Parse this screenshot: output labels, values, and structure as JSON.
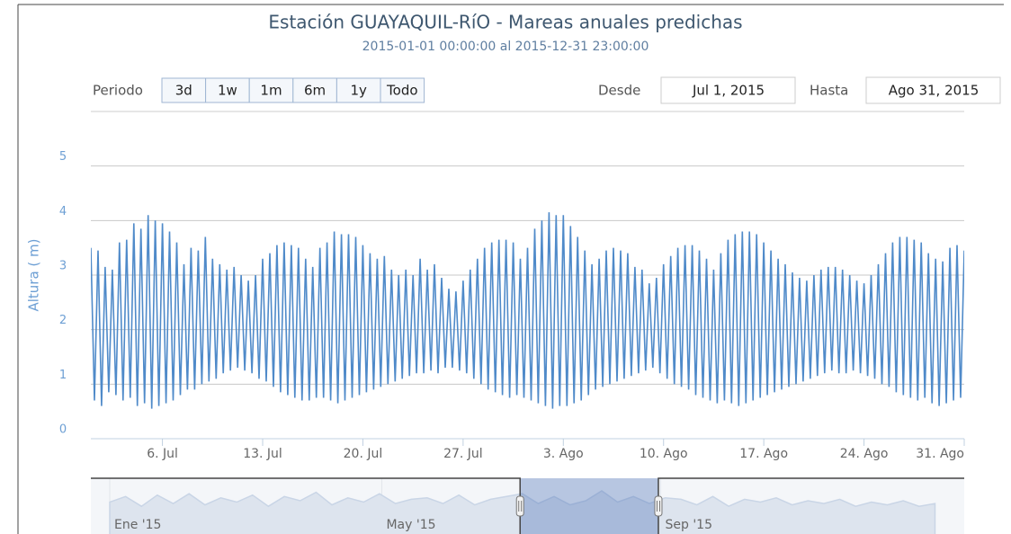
{
  "chart_data": {
    "type": "line",
    "title": "Estación GUAYAQUIL-RíO - Mareas anuales predichas",
    "subtitle": "2015-01-01 00:00:00 al 2015-12-31 23:00:00",
    "y_label": "Altura ( m)",
    "range_selector": {
      "label": "Periodo",
      "buttons": [
        "3d",
        "1w",
        "1m",
        "6m",
        "1y",
        "Todo"
      ],
      "from_label": "Desde",
      "from": "Jul 1, 2015",
      "to_label": "Hasta",
      "to": "Ago 31, 2015"
    },
    "xlim": [
      0,
      61
    ],
    "ylim": [
      0,
      6
    ],
    "yticks": [
      0,
      1,
      2,
      3,
      4,
      5
    ],
    "xticks": [
      {
        "value": 5,
        "label": "6. Jul"
      },
      {
        "value": 12,
        "label": "13. Jul"
      },
      {
        "value": 19,
        "label": "20. Jul"
      },
      {
        "value": 26,
        "label": "27. Jul"
      },
      {
        "value": 33,
        "label": "3. Ago"
      },
      {
        "value": 40,
        "label": "10. Ago"
      },
      {
        "value": 47,
        "label": "17. Ago"
      },
      {
        "value": 54,
        "label": "24. Ago"
      },
      {
        "value": 61,
        "label": "31. Ago"
      }
    ],
    "grid": true,
    "x": [
      0,
      0.25,
      0.5,
      0.75,
      1,
      1.25,
      1.5,
      1.75,
      2,
      2.25,
      2.5,
      2.75,
      3,
      3.25,
      3.5,
      3.75,
      4,
      4.25,
      4.5,
      4.75,
      5,
      5.25,
      5.5,
      5.75,
      6,
      6.25,
      6.5,
      6.75,
      7,
      7.25,
      7.5,
      7.75,
      8,
      8.25,
      8.5,
      8.75,
      9,
      9.25,
      9.5,
      9.75,
      10,
      10.25,
      10.5,
      10.75,
      11,
      11.25,
      11.5,
      11.75,
      12,
      12.25,
      12.5,
      12.75,
      13,
      13.25,
      13.5,
      13.75,
      14,
      14.25,
      14.5,
      14.75,
      15,
      15.25,
      15.5,
      15.75,
      16,
      16.25,
      16.5,
      16.75,
      17,
      17.25,
      17.5,
      17.75,
      18,
      18.25,
      18.5,
      18.75,
      19,
      19.25,
      19.5,
      19.75,
      20,
      20.25,
      20.5,
      20.75,
      21,
      21.25,
      21.5,
      21.75,
      22,
      22.25,
      22.5,
      22.75,
      23,
      23.25,
      23.5,
      23.75,
      24,
      24.25,
      24.5,
      24.75,
      25,
      25.25,
      25.5,
      25.75,
      26,
      26.25,
      26.5,
      26.75,
      27,
      27.25,
      27.5,
      27.75,
      28,
      28.25,
      28.5,
      28.75,
      29,
      29.25,
      29.5,
      29.75,
      30,
      30.25,
      30.5,
      30.75,
      31,
      31.25,
      31.5,
      31.75,
      32,
      32.25,
      32.5,
      32.75,
      33,
      33.25,
      33.5,
      33.75,
      34,
      34.25,
      34.5,
      34.75,
      35,
      35.25,
      35.5,
      35.75,
      36,
      36.25,
      36.5,
      36.75,
      37,
      37.25,
      37.5,
      37.75,
      38,
      38.25,
      38.5,
      38.75,
      39,
      39.25,
      39.5,
      39.75,
      40,
      40.25,
      40.5,
      40.75,
      41,
      41.25,
      41.5,
      41.75,
      42,
      42.25,
      42.5,
      42.75,
      43,
      43.25,
      43.5,
      43.75,
      44,
      44.25,
      44.5,
      44.75,
      45,
      45.25,
      45.5,
      45.75,
      46,
      46.25,
      46.5,
      46.75,
      47,
      47.25,
      47.5,
      47.75,
      48,
      48.25,
      48.5,
      48.75,
      49,
      49.25,
      49.5,
      49.75,
      50,
      50.25,
      50.5,
      50.75,
      51,
      51.25,
      51.5,
      51.75,
      52,
      52.25,
      52.5,
      52.75,
      53,
      53.25,
      53.5,
      53.75,
      54,
      54.25,
      54.5,
      54.75,
      55,
      55.25,
      55.5,
      55.75,
      56,
      56.25,
      56.5,
      56.75,
      57,
      57.25,
      57.5,
      57.75,
      58,
      58.25,
      58.5,
      58.75,
      59,
      59.25,
      59.5,
      59.75,
      60,
      60.25,
      60.5,
      60.75,
      61
    ],
    "series": [
      {
        "name": "Altura",
        "color": "#4f8ac9",
        "values": [
          3.5,
          0.7,
          3.45,
          0.6,
          3.15,
          0.85,
          3.1,
          0.8,
          3.6,
          0.7,
          3.65,
          0.75,
          3.95,
          0.6,
          3.85,
          0.65,
          4.1,
          0.55,
          4.0,
          0.6,
          3.95,
          0.65,
          3.8,
          0.7,
          3.6,
          0.8,
          3.2,
          0.9,
          3.5,
          0.9,
          3.45,
          1.0,
          3.7,
          1.05,
          3.3,
          1.1,
          3.2,
          1.2,
          3.1,
          1.25,
          3.15,
          1.3,
          3.0,
          1.25,
          2.9,
          1.2,
          3.0,
          1.1,
          3.3,
          1.05,
          3.4,
          0.95,
          3.55,
          0.85,
          3.6,
          0.8,
          3.55,
          0.75,
          3.5,
          0.7,
          3.3,
          0.7,
          3.15,
          0.75,
          3.5,
          0.75,
          3.6,
          0.7,
          3.8,
          0.65,
          3.75,
          0.7,
          3.75,
          0.75,
          3.7,
          0.8,
          3.55,
          0.85,
          3.4,
          0.9,
          3.3,
          0.95,
          3.35,
          1.0,
          3.1,
          1.05,
          3.0,
          1.1,
          3.1,
          1.15,
          3.0,
          1.2,
          3.3,
          1.2,
          3.1,
          1.25,
          3.2,
          1.2,
          2.95,
          1.3,
          2.75,
          1.3,
          2.7,
          1.25,
          2.9,
          1.2,
          3.1,
          1.1,
          3.3,
          1.0,
          3.5,
          0.9,
          3.6,
          0.85,
          3.65,
          0.8,
          3.65,
          0.75,
          3.6,
          0.8,
          3.3,
          0.75,
          3.5,
          0.7,
          3.85,
          0.65,
          4.0,
          0.6,
          4.15,
          0.55,
          4.1,
          0.6,
          4.1,
          0.6,
          3.9,
          0.65,
          3.7,
          0.7,
          3.45,
          0.8,
          3.2,
          0.9,
          3.3,
          0.95,
          3.45,
          1.0,
          3.5,
          1.05,
          3.45,
          1.1,
          3.4,
          1.15,
          3.15,
          1.2,
          3.1,
          1.25,
          2.85,
          1.3,
          2.95,
          1.2,
          3.2,
          1.1,
          3.35,
          1.0,
          3.5,
          0.95,
          3.55,
          0.9,
          3.55,
          0.8,
          3.45,
          0.75,
          3.3,
          0.7,
          3.1,
          0.65,
          3.4,
          0.7,
          3.65,
          0.65,
          3.75,
          0.6,
          3.8,
          0.65,
          3.8,
          0.7,
          3.75,
          0.75,
          3.6,
          0.8,
          3.45,
          0.85,
          3.3,
          0.9,
          3.2,
          0.95,
          3.05,
          1.0,
          2.95,
          1.05,
          2.9,
          1.1,
          3.0,
          1.15,
          3.1,
          1.2,
          3.15,
          1.25,
          3.15,
          1.2,
          3.1,
          1.2,
          3.0,
          1.25,
          2.9,
          1.2,
          2.85,
          1.15,
          3.0,
          1.1,
          3.2,
          1.0,
          3.4,
          0.95,
          3.6,
          0.85,
          3.7,
          0.8,
          3.7,
          0.75,
          3.65,
          0.7,
          3.6,
          0.75,
          3.4,
          0.65,
          3.3,
          0.6,
          3.25,
          0.65,
          3.5,
          0.7,
          3.55,
          0.75,
          3.45
        ]
      }
    ],
    "navigator": {
      "xlim": [
        0,
        365
      ],
      "ylim": [
        0,
        5
      ],
      "xticks": [
        {
          "value": 0,
          "label": "Ene '15"
        },
        {
          "value": 120,
          "label": "May '15"
        },
        {
          "value": 243,
          "label": "Sep '15"
        }
      ],
      "selection": [
        181,
        242
      ],
      "x": [
        0,
        7,
        14,
        21,
        28,
        35,
        42,
        49,
        56,
        63,
        70,
        77,
        84,
        91,
        98,
        105,
        112,
        119,
        126,
        133,
        140,
        147,
        154,
        161,
        168,
        175,
        182,
        189,
        196,
        203,
        210,
        217,
        224,
        231,
        238,
        245,
        252,
        259,
        266,
        273,
        280,
        287,
        294,
        301,
        308,
        315,
        322,
        329,
        336,
        343,
        350,
        357,
        364
      ],
      "values": [
        3.3,
        3.7,
        3.0,
        3.8,
        3.2,
        3.9,
        3.1,
        3.6,
        3.3,
        3.8,
        3.0,
        3.7,
        3.4,
        4.0,
        3.1,
        3.6,
        3.3,
        3.9,
        3.2,
        3.5,
        3.6,
        3.2,
        3.8,
        3.1,
        3.5,
        3.7,
        3.9,
        3.2,
        3.7,
        3.1,
        3.4,
        4.1,
        3.3,
        3.7,
        3.2,
        3.6,
        3.5,
        3.1,
        3.7,
        3.0,
        3.5,
        3.3,
        3.6,
        3.1,
        3.4,
        3.2,
        3.5,
        3.0,
        3.3,
        3.1,
        3.4,
        3.0,
        3.2
      ]
    }
  }
}
